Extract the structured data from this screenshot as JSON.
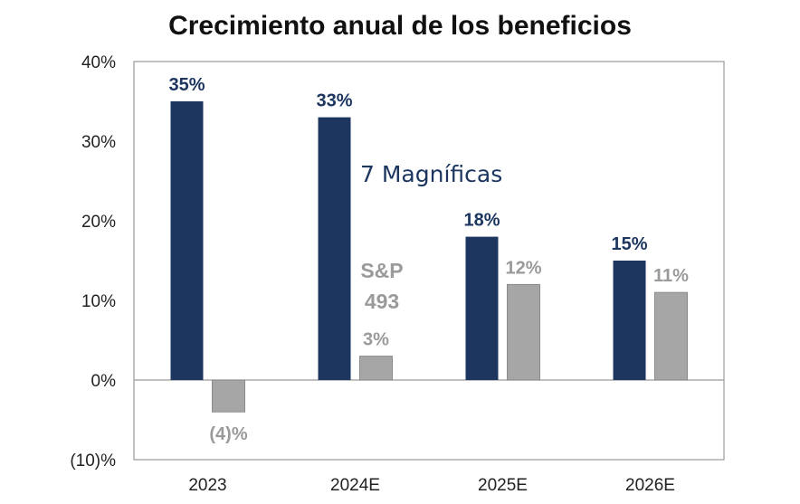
{
  "chart_data": {
    "type": "bar",
    "title": "Crecimiento anual de los beneficios",
    "categories": [
      "2023",
      "2024E",
      "2025E",
      "2026E"
    ],
    "series": [
      {
        "name": "7 Magníficas",
        "values": [
          35,
          33,
          18,
          15
        ],
        "labels": [
          "35%",
          "33%",
          "18%",
          "15%"
        ],
        "color": "#1c3660"
      },
      {
        "name_lines": [
          "S&P",
          "493"
        ],
        "values": [
          -4,
          3,
          12,
          11
        ],
        "labels": [
          "(4)%",
          "3%",
          "12%",
          "11%"
        ],
        "color": "#a6a6a6"
      }
    ],
    "y_ticks": [
      {
        "value": 40,
        "label": "40%"
      },
      {
        "value": 30,
        "label": "30%"
      },
      {
        "value": 20,
        "label": "20%"
      },
      {
        "value": 10,
        "label": "10%"
      },
      {
        "value": 0,
        "label": "0%"
      },
      {
        "value": -10,
        "label": "(10)%"
      }
    ],
    "ylim": [
      -10,
      40
    ],
    "grid": false,
    "legend": "inline labels"
  }
}
